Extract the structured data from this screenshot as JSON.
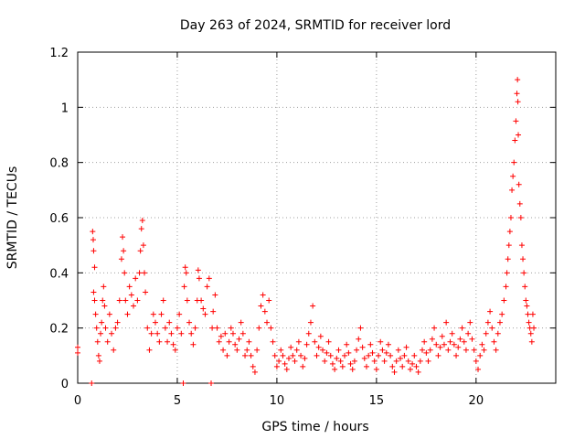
{
  "chart_data": {
    "type": "scatter",
    "title": "Day 263 of 2024, SRMTID for receiver lord",
    "xlabel": "GPS time / hours",
    "ylabel": "SRMTID / TECUs",
    "xlim": [
      0,
      24
    ],
    "ylim": [
      0,
      1.2
    ],
    "x_ticks": [
      0,
      5,
      10,
      15,
      20
    ],
    "x_tick_labels": [
      "0",
      "5",
      "10",
      "15",
      "20"
    ],
    "y_ticks": [
      0,
      0.2,
      0.4,
      0.6,
      0.8,
      1.0,
      1.2
    ],
    "y_tick_labels": [
      "0",
      "0.2",
      "0.4",
      "0.6",
      "0.8",
      "1",
      "1.2"
    ],
    "grid": true,
    "marker": "+",
    "color": "#ff0000",
    "series": [
      {
        "name": "SRMTID",
        "points": [
          [
            0.0,
            0.13
          ],
          [
            0.0,
            0.11
          ],
          [
            0.7,
            0.0
          ],
          [
            0.75,
            0.55
          ],
          [
            0.78,
            0.52
          ],
          [
            0.8,
            0.48
          ],
          [
            0.85,
            0.42
          ],
          [
            0.8,
            0.33
          ],
          [
            0.85,
            0.3
          ],
          [
            0.9,
            0.25
          ],
          [
            0.95,
            0.2
          ],
          [
            1.0,
            0.15
          ],
          [
            1.05,
            0.1
          ],
          [
            1.1,
            0.08
          ],
          [
            1.15,
            0.18
          ],
          [
            1.2,
            0.22
          ],
          [
            1.25,
            0.3
          ],
          [
            1.3,
            0.35
          ],
          [
            1.35,
            0.28
          ],
          [
            1.4,
            0.2
          ],
          [
            1.5,
            0.15
          ],
          [
            1.6,
            0.25
          ],
          [
            1.7,
            0.18
          ],
          [
            1.8,
            0.12
          ],
          [
            1.9,
            0.2
          ],
          [
            2.0,
            0.22
          ],
          [
            2.1,
            0.3
          ],
          [
            2.2,
            0.45
          ],
          [
            2.25,
            0.53
          ],
          [
            2.3,
            0.48
          ],
          [
            2.35,
            0.4
          ],
          [
            2.4,
            0.3
          ],
          [
            2.5,
            0.25
          ],
          [
            2.6,
            0.35
          ],
          [
            2.7,
            0.32
          ],
          [
            2.8,
            0.28
          ],
          [
            2.9,
            0.38
          ],
          [
            3.0,
            0.3
          ],
          [
            3.1,
            0.4
          ],
          [
            3.15,
            0.48
          ],
          [
            3.2,
            0.56
          ],
          [
            3.25,
            0.59
          ],
          [
            3.3,
            0.5
          ],
          [
            3.35,
            0.4
          ],
          [
            3.4,
            0.33
          ],
          [
            3.5,
            0.2
          ],
          [
            3.6,
            0.12
          ],
          [
            3.7,
            0.18
          ],
          [
            3.8,
            0.25
          ],
          [
            3.9,
            0.22
          ],
          [
            4.0,
            0.18
          ],
          [
            4.1,
            0.15
          ],
          [
            4.2,
            0.25
          ],
          [
            4.3,
            0.3
          ],
          [
            4.4,
            0.2
          ],
          [
            4.5,
            0.15
          ],
          [
            4.6,
            0.22
          ],
          [
            4.7,
            0.18
          ],
          [
            4.8,
            0.14
          ],
          [
            4.9,
            0.12
          ],
          [
            5.0,
            0.2
          ],
          [
            5.1,
            0.25
          ],
          [
            5.2,
            0.18
          ],
          [
            5.3,
            0.0
          ],
          [
            5.35,
            0.35
          ],
          [
            5.4,
            0.42
          ],
          [
            5.45,
            0.4
          ],
          [
            5.5,
            0.3
          ],
          [
            5.6,
            0.22
          ],
          [
            5.7,
            0.18
          ],
          [
            5.8,
            0.14
          ],
          [
            5.9,
            0.2
          ],
          [
            6.0,
            0.3
          ],
          [
            6.05,
            0.41
          ],
          [
            6.1,
            0.38
          ],
          [
            6.2,
            0.3
          ],
          [
            6.3,
            0.27
          ],
          [
            6.4,
            0.25
          ],
          [
            6.5,
            0.35
          ],
          [
            6.6,
            0.38
          ],
          [
            6.7,
            0.0
          ],
          [
            6.75,
            0.2
          ],
          [
            6.8,
            0.26
          ],
          [
            6.9,
            0.32
          ],
          [
            7.0,
            0.2
          ],
          [
            7.1,
            0.15
          ],
          [
            7.2,
            0.17
          ],
          [
            7.3,
            0.12
          ],
          [
            7.4,
            0.18
          ],
          [
            7.5,
            0.1
          ],
          [
            7.6,
            0.15
          ],
          [
            7.7,
            0.2
          ],
          [
            7.8,
            0.18
          ],
          [
            7.9,
            0.14
          ],
          [
            8.0,
            0.12
          ],
          [
            8.1,
            0.16
          ],
          [
            8.2,
            0.22
          ],
          [
            8.3,
            0.18
          ],
          [
            8.4,
            0.1
          ],
          [
            8.5,
            0.12
          ],
          [
            8.6,
            0.15
          ],
          [
            8.7,
            0.1
          ],
          [
            8.8,
            0.06
          ],
          [
            8.9,
            0.04
          ],
          [
            9.0,
            0.12
          ],
          [
            9.1,
            0.2
          ],
          [
            9.2,
            0.28
          ],
          [
            9.3,
            0.32
          ],
          [
            9.4,
            0.26
          ],
          [
            9.5,
            0.22
          ],
          [
            9.6,
            0.3
          ],
          [
            9.7,
            0.2
          ],
          [
            9.8,
            0.15
          ],
          [
            9.9,
            0.1
          ],
          [
            10.0,
            0.06
          ],
          [
            10.1,
            0.08
          ],
          [
            10.2,
            0.12
          ],
          [
            10.3,
            0.1
          ],
          [
            10.4,
            0.07
          ],
          [
            10.5,
            0.05
          ],
          [
            10.6,
            0.09
          ],
          [
            10.7,
            0.13
          ],
          [
            10.8,
            0.1
          ],
          [
            10.9,
            0.08
          ],
          [
            11.0,
            0.12
          ],
          [
            11.1,
            0.15
          ],
          [
            11.2,
            0.1
          ],
          [
            11.3,
            0.06
          ],
          [
            11.4,
            0.09
          ],
          [
            11.5,
            0.14
          ],
          [
            11.6,
            0.18
          ],
          [
            11.7,
            0.22
          ],
          [
            11.8,
            0.28
          ],
          [
            11.9,
            0.15
          ],
          [
            12.0,
            0.1
          ],
          [
            12.1,
            0.13
          ],
          [
            12.2,
            0.17
          ],
          [
            12.3,
            0.12
          ],
          [
            12.4,
            0.08
          ],
          [
            12.5,
            0.11
          ],
          [
            12.6,
            0.15
          ],
          [
            12.7,
            0.1
          ],
          [
            12.8,
            0.07
          ],
          [
            12.9,
            0.05
          ],
          [
            13.0,
            0.09
          ],
          [
            13.1,
            0.12
          ],
          [
            13.2,
            0.08
          ],
          [
            13.3,
            0.06
          ],
          [
            13.4,
            0.1
          ],
          [
            13.5,
            0.14
          ],
          [
            13.6,
            0.11
          ],
          [
            13.7,
            0.07
          ],
          [
            13.8,
            0.05
          ],
          [
            13.9,
            0.08
          ],
          [
            14.0,
            0.12
          ],
          [
            14.1,
            0.16
          ],
          [
            14.2,
            0.2
          ],
          [
            14.3,
            0.13
          ],
          [
            14.4,
            0.09
          ],
          [
            14.5,
            0.06
          ],
          [
            14.6,
            0.1
          ],
          [
            14.7,
            0.14
          ],
          [
            14.8,
            0.11
          ],
          [
            14.9,
            0.08
          ],
          [
            15.0,
            0.05
          ],
          [
            15.1,
            0.1
          ],
          [
            15.2,
            0.15
          ],
          [
            15.3,
            0.12
          ],
          [
            15.4,
            0.08
          ],
          [
            15.5,
            0.11
          ],
          [
            15.6,
            0.14
          ],
          [
            15.7,
            0.1
          ],
          [
            15.8,
            0.06
          ],
          [
            15.9,
            0.04
          ],
          [
            16.0,
            0.08
          ],
          [
            16.1,
            0.12
          ],
          [
            16.2,
            0.09
          ],
          [
            16.3,
            0.06
          ],
          [
            16.4,
            0.1
          ],
          [
            16.5,
            0.13
          ],
          [
            16.6,
            0.08
          ],
          [
            16.7,
            0.05
          ],
          [
            16.8,
            0.07
          ],
          [
            16.9,
            0.1
          ],
          [
            17.0,
            0.06
          ],
          [
            17.1,
            0.04
          ],
          [
            17.2,
            0.08
          ],
          [
            17.3,
            0.12
          ],
          [
            17.4,
            0.15
          ],
          [
            17.5,
            0.11
          ],
          [
            17.6,
            0.08
          ],
          [
            17.7,
            0.12
          ],
          [
            17.8,
            0.16
          ],
          [
            17.9,
            0.2
          ],
          [
            18.0,
            0.14
          ],
          [
            18.1,
            0.1
          ],
          [
            18.2,
            0.13
          ],
          [
            18.3,
            0.17
          ],
          [
            18.4,
            0.14
          ],
          [
            18.5,
            0.22
          ],
          [
            18.6,
            0.12
          ],
          [
            18.7,
            0.15
          ],
          [
            18.8,
            0.18
          ],
          [
            18.9,
            0.14
          ],
          [
            19.0,
            0.1
          ],
          [
            19.1,
            0.13
          ],
          [
            19.2,
            0.16
          ],
          [
            19.3,
            0.2
          ],
          [
            19.4,
            0.15
          ],
          [
            19.5,
            0.12
          ],
          [
            19.6,
            0.18
          ],
          [
            19.7,
            0.22
          ],
          [
            19.8,
            0.16
          ],
          [
            19.9,
            0.12
          ],
          [
            20.0,
            0.08
          ],
          [
            20.1,
            0.05
          ],
          [
            20.2,
            0.1
          ],
          [
            20.3,
            0.14
          ],
          [
            20.4,
            0.12
          ],
          [
            20.5,
            0.18
          ],
          [
            20.6,
            0.22
          ],
          [
            20.7,
            0.26
          ],
          [
            20.8,
            0.2
          ],
          [
            20.9,
            0.15
          ],
          [
            21.0,
            0.12
          ],
          [
            21.1,
            0.18
          ],
          [
            21.2,
            0.22
          ],
          [
            21.3,
            0.25
          ],
          [
            21.4,
            0.3
          ],
          [
            21.5,
            0.35
          ],
          [
            21.55,
            0.4
          ],
          [
            21.6,
            0.45
          ],
          [
            21.65,
            0.5
          ],
          [
            21.7,
            0.55
          ],
          [
            21.75,
            0.6
          ],
          [
            21.8,
            0.7
          ],
          [
            21.85,
            0.75
          ],
          [
            21.9,
            0.8
          ],
          [
            21.95,
            0.88
          ],
          [
            22.0,
            0.95
          ],
          [
            22.05,
            1.05
          ],
          [
            22.08,
            1.1
          ],
          [
            22.1,
            1.02
          ],
          [
            22.12,
            0.9
          ],
          [
            22.15,
            0.72
          ],
          [
            22.2,
            0.65
          ],
          [
            22.25,
            0.6
          ],
          [
            22.3,
            0.5
          ],
          [
            22.35,
            0.45
          ],
          [
            22.4,
            0.4
          ],
          [
            22.45,
            0.35
          ],
          [
            22.5,
            0.3
          ],
          [
            22.55,
            0.28
          ],
          [
            22.6,
            0.25
          ],
          [
            22.65,
            0.22
          ],
          [
            22.7,
            0.2
          ],
          [
            22.75,
            0.18
          ],
          [
            22.8,
            0.15
          ],
          [
            22.85,
            0.25
          ],
          [
            22.9,
            0.2
          ]
        ]
      }
    ]
  }
}
